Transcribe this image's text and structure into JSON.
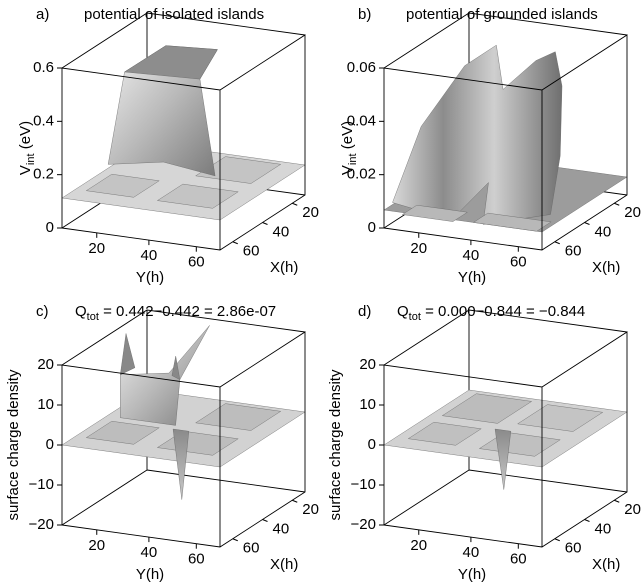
{
  "panels": [
    {
      "label": "a)",
      "title": "potential of isolated islands",
      "z_label": {
        "main": "V",
        "sub": "int",
        "rest": " (eV)"
      },
      "z_ticks": [
        "0",
        "0.2",
        "0.4",
        "0.6"
      ],
      "y_ticks": [
        "20",
        "40",
        "60"
      ],
      "x_ticks": [
        "20",
        "40",
        "60"
      ],
      "y_label": "Y(h)",
      "x_label": "X(h)"
    },
    {
      "label": "b)",
      "title": "potential of grounded islands",
      "z_label": {
        "main": "V",
        "sub": "int",
        "rest": " (eV)"
      },
      "z_ticks": [
        "0",
        "0.02",
        "0.04",
        "0.06"
      ],
      "y_ticks": [
        "20",
        "40",
        "60"
      ],
      "x_ticks": [
        "20",
        "40",
        "60"
      ],
      "y_label": "Y(h)",
      "x_label": "X(h)"
    },
    {
      "label": "c)",
      "title": {
        "main": "Q",
        "sub": "tot",
        "rest": " = 0.442−0.442 = 2.86e-07"
      },
      "z_label": "surface charge density",
      "z_ticks": [
        "−20",
        "−10",
        "0",
        "10",
        "20"
      ],
      "y_ticks": [
        "20",
        "40",
        "60"
      ],
      "x_ticks": [
        "20",
        "40",
        "60"
      ],
      "y_label": "Y(h)",
      "x_label": "X(h)"
    },
    {
      "label": "d)",
      "title": {
        "main": "Q",
        "sub": "tot",
        "rest": " = 0.000−0.844 = −0.844"
      },
      "z_label": "surface charge density",
      "z_ticks": [
        "−20",
        "−10",
        "0",
        "10",
        "20"
      ],
      "y_ticks": [
        "20",
        "40",
        "60"
      ],
      "x_ticks": [
        "20",
        "40",
        "60"
      ],
      "y_label": "Y(h)",
      "x_label": "X(h)"
    }
  ]
}
